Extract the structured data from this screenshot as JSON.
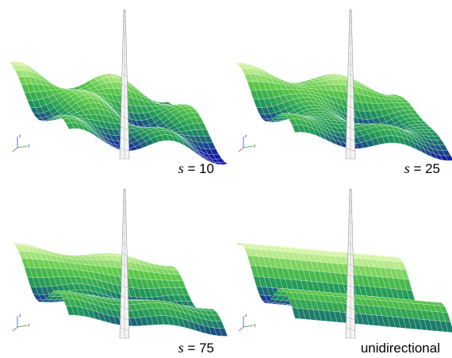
{
  "panels": [
    {
      "symbol": "s",
      "label": "= 10",
      "triad": [
        "z",
        "y"
      ]
    },
    {
      "symbol": "s",
      "label": "= 25",
      "triad": [
        "z",
        "y"
      ]
    },
    {
      "symbol": "s",
      "label": "= 75",
      "triad": [
        "z",
        "y"
      ]
    },
    {
      "symbol": null,
      "label": "unidirectional",
      "triad": [
        "z",
        "y"
      ]
    }
  ]
}
